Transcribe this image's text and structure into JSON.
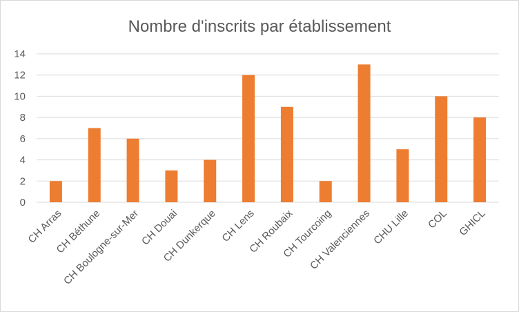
{
  "chart_data": {
    "type": "bar",
    "title": "Nombre d'inscrits par établissement",
    "xlabel": "",
    "ylabel": "",
    "categories": [
      "CH Arras",
      "CH Béthune",
      "CH Boulogne-sur-Mer",
      "CH Douai",
      "CH Dunkerque",
      "CH Lens",
      "CH Roubaix",
      "CH Tourcoing",
      "CH Valenciennes",
      "CHU Lille",
      "COL",
      "GHICL"
    ],
    "values": [
      2,
      7,
      6,
      3,
      4,
      12,
      9,
      2,
      13,
      5,
      10,
      8
    ],
    "ylim": [
      0,
      14
    ],
    "yticks": [
      0,
      2,
      4,
      6,
      8,
      10,
      12,
      14
    ],
    "grid": true,
    "legend": "none",
    "colors": {
      "bar": "#ED7D31",
      "grid": "#D9D9D9",
      "text": "#595959"
    }
  }
}
